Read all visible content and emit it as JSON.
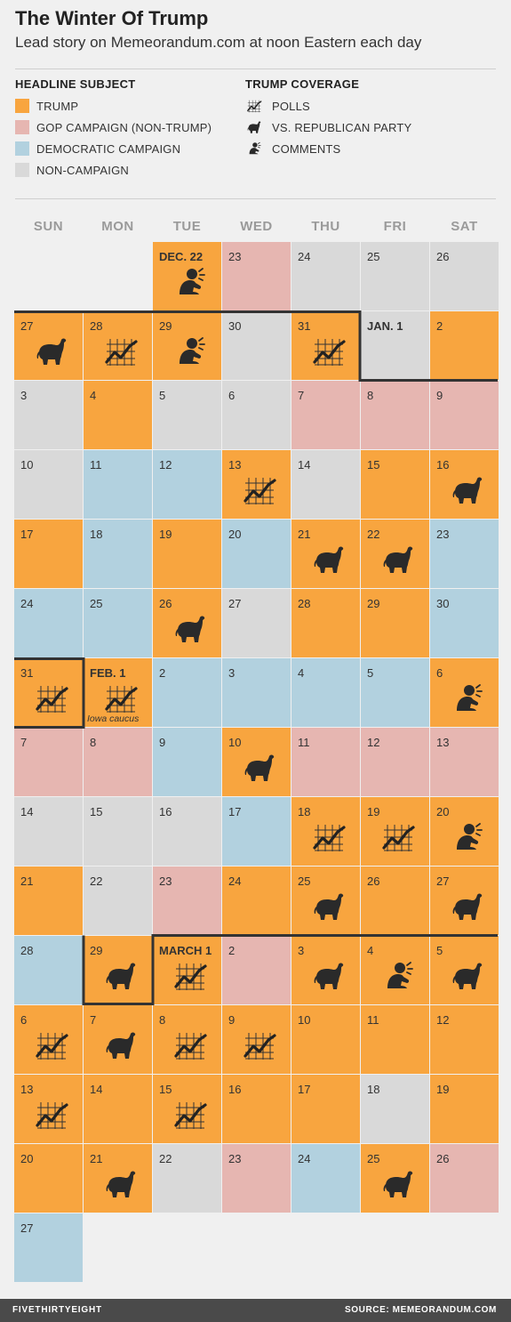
{
  "title": "The Winter Of Trump",
  "subtitle": "Lead story on Memeorandum.com at noon Eastern each day",
  "legend": {
    "subject_heading": "HEADLINE SUBJECT",
    "coverage_heading": "TRUMP COVERAGE",
    "subjects": [
      {
        "key": "T",
        "label": "TRUMP",
        "color": "#f8a53f"
      },
      {
        "key": "G",
        "label": "GOP CAMPAIGN (NON-TRUMP)",
        "color": "#e6b6b1"
      },
      {
        "key": "D",
        "label": "DEMOCRATIC CAMPAIGN",
        "color": "#b2d1df"
      },
      {
        "key": "N",
        "label": "NON-CAMPAIGN",
        "color": "#d9d9d9"
      }
    ],
    "coverage": [
      {
        "key": "P",
        "label": "POLLS",
        "icon": "polls-icon"
      },
      {
        "key": "R",
        "label": "VS. REPUBLICAN PARTY",
        "icon": "elephant-icon"
      },
      {
        "key": "C",
        "label": "COMMENTS",
        "icon": "comments-icon"
      }
    ]
  },
  "weekdays": [
    "SUN",
    "MON",
    "TUE",
    "WED",
    "THU",
    "FRI",
    "SAT"
  ],
  "footer": {
    "brand": "FIVETHIRTYEIGHT",
    "source": "SOURCE: MEMEORANDUM.COM"
  },
  "chart_data": {
    "type": "calendar",
    "title": "The Winter Of Trump",
    "subtitle": "Lead story on Memeorandum.com at noon Eastern each day",
    "weeks": [
      [
        null,
        null,
        {
          "label": "DEC. 22",
          "s": "T",
          "i": "C"
        },
        {
          "label": "23",
          "s": "G"
        },
        {
          "label": "24",
          "s": "N"
        },
        {
          "label": "25",
          "s": "N"
        },
        {
          "label": "26",
          "s": "N"
        }
      ],
      [
        {
          "label": "27",
          "s": "T",
          "i": "R"
        },
        {
          "label": "28",
          "s": "T",
          "i": "P"
        },
        {
          "label": "29",
          "s": "T",
          "i": "C"
        },
        {
          "label": "30",
          "s": "N"
        },
        {
          "label": "31",
          "s": "T",
          "i": "P"
        },
        {
          "label": "JAN. 1",
          "s": "N"
        },
        {
          "label": "2",
          "s": "T"
        }
      ],
      [
        {
          "label": "3",
          "s": "N"
        },
        {
          "label": "4",
          "s": "T"
        },
        {
          "label": "5",
          "s": "N"
        },
        {
          "label": "6",
          "s": "N"
        },
        {
          "label": "7",
          "s": "G"
        },
        {
          "label": "8",
          "s": "G"
        },
        {
          "label": "9",
          "s": "G"
        }
      ],
      [
        {
          "label": "10",
          "s": "N"
        },
        {
          "label": "11",
          "s": "D"
        },
        {
          "label": "12",
          "s": "D"
        },
        {
          "label": "13",
          "s": "T",
          "i": "P"
        },
        {
          "label": "14",
          "s": "N"
        },
        {
          "label": "15",
          "s": "T"
        },
        {
          "label": "16",
          "s": "T",
          "i": "R"
        }
      ],
      [
        {
          "label": "17",
          "s": "T"
        },
        {
          "label": "18",
          "s": "D"
        },
        {
          "label": "19",
          "s": "T"
        },
        {
          "label": "20",
          "s": "D"
        },
        {
          "label": "21",
          "s": "T",
          "i": "R"
        },
        {
          "label": "22",
          "s": "T",
          "i": "R"
        },
        {
          "label": "23",
          "s": "D"
        }
      ],
      [
        {
          "label": "24",
          "s": "D"
        },
        {
          "label": "25",
          "s": "D"
        },
        {
          "label": "26",
          "s": "T",
          "i": "R"
        },
        {
          "label": "27",
          "s": "N"
        },
        {
          "label": "28",
          "s": "T"
        },
        {
          "label": "29",
          "s": "T"
        },
        {
          "label": "30",
          "s": "D"
        }
      ],
      [
        {
          "label": "31",
          "s": "T",
          "i": "P"
        },
        {
          "label": "FEB. 1",
          "s": "T",
          "i": "P",
          "note": "Iowa caucus"
        },
        {
          "label": "2",
          "s": "D"
        },
        {
          "label": "3",
          "s": "D"
        },
        {
          "label": "4",
          "s": "D"
        },
        {
          "label": "5",
          "s": "D"
        },
        {
          "label": "6",
          "s": "T",
          "i": "C"
        }
      ],
      [
        {
          "label": "7",
          "s": "G"
        },
        {
          "label": "8",
          "s": "G"
        },
        {
          "label": "9",
          "s": "D"
        },
        {
          "label": "10",
          "s": "T",
          "i": "R"
        },
        {
          "label": "11",
          "s": "G"
        },
        {
          "label": "12",
          "s": "G"
        },
        {
          "label": "13",
          "s": "G"
        }
      ],
      [
        {
          "label": "14",
          "s": "N"
        },
        {
          "label": "15",
          "s": "N"
        },
        {
          "label": "16",
          "s": "N"
        },
        {
          "label": "17",
          "s": "D"
        },
        {
          "label": "18",
          "s": "T",
          "i": "P"
        },
        {
          "label": "19",
          "s": "T",
          "i": "P"
        },
        {
          "label": "20",
          "s": "T",
          "i": "C"
        }
      ],
      [
        {
          "label": "21",
          "s": "T"
        },
        {
          "label": "22",
          "s": "N"
        },
        {
          "label": "23",
          "s": "G"
        },
        {
          "label": "24",
          "s": "T"
        },
        {
          "label": "25",
          "s": "T",
          "i": "R"
        },
        {
          "label": "26",
          "s": "T"
        },
        {
          "label": "27",
          "s": "T",
          "i": "R"
        }
      ],
      [
        {
          "label": "28",
          "s": "D"
        },
        {
          "label": "29",
          "s": "T",
          "i": "R"
        },
        {
          "label": "MARCH 1",
          "s": "T",
          "i": "P"
        },
        {
          "label": "2",
          "s": "G"
        },
        {
          "label": "3",
          "s": "T",
          "i": "R"
        },
        {
          "label": "4",
          "s": "T",
          "i": "C"
        },
        {
          "label": "5",
          "s": "T",
          "i": "R"
        }
      ],
      [
        {
          "label": "6",
          "s": "T",
          "i": "P"
        },
        {
          "label": "7",
          "s": "T",
          "i": "R"
        },
        {
          "label": "8",
          "s": "T",
          "i": "P"
        },
        {
          "label": "9",
          "s": "T",
          "i": "P"
        },
        {
          "label": "10",
          "s": "T"
        },
        {
          "label": "11",
          "s": "T"
        },
        {
          "label": "12",
          "s": "T"
        }
      ],
      [
        {
          "label": "13",
          "s": "T",
          "i": "P"
        },
        {
          "label": "14",
          "s": "T"
        },
        {
          "label": "15",
          "s": "T",
          "i": "P"
        },
        {
          "label": "16",
          "s": "T"
        },
        {
          "label": "17",
          "s": "T"
        },
        {
          "label": "18",
          "s": "N"
        },
        {
          "label": "19",
          "s": "T"
        }
      ],
      [
        {
          "label": "20",
          "s": "T"
        },
        {
          "label": "21",
          "s": "T",
          "i": "R"
        },
        {
          "label": "22",
          "s": "N"
        },
        {
          "label": "23",
          "s": "G"
        },
        {
          "label": "24",
          "s": "D"
        },
        {
          "label": "25",
          "s": "T",
          "i": "R"
        },
        {
          "label": "26",
          "s": "G"
        }
      ],
      [
        {
          "label": "27",
          "s": "D"
        },
        null,
        null,
        null,
        null,
        null,
        null
      ]
    ]
  }
}
